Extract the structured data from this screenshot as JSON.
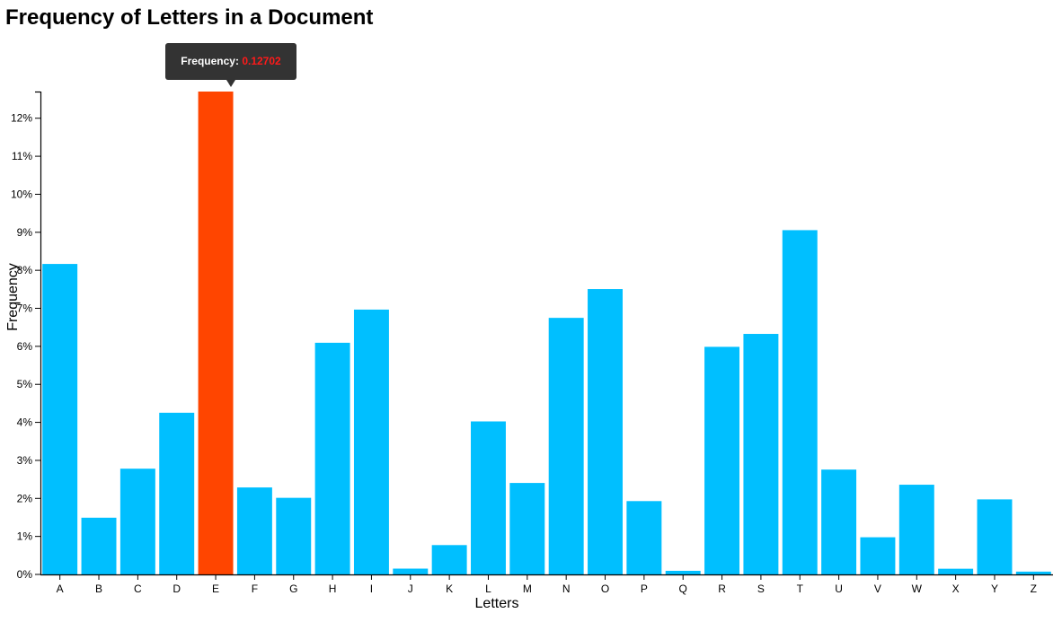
{
  "chart_data": {
    "type": "bar",
    "title": "Frequency of Letters in a Document",
    "xlabel": "Letters",
    "ylabel": "Frequency",
    "ylim": [
      0,
      0.12702
    ],
    "yticks": [
      0,
      0.01,
      0.02,
      0.03,
      0.04,
      0.05,
      0.06,
      0.07,
      0.08,
      0.09,
      0.1,
      0.11,
      0.12
    ],
    "ytick_labels": [
      "0%",
      "1%",
      "2%",
      "3%",
      "4%",
      "5%",
      "6%",
      "7%",
      "8%",
      "9%",
      "10%",
      "11%",
      "12%"
    ],
    "categories": [
      "A",
      "B",
      "C",
      "D",
      "E",
      "F",
      "G",
      "H",
      "I",
      "J",
      "K",
      "L",
      "M",
      "N",
      "O",
      "P",
      "Q",
      "R",
      "S",
      "T",
      "U",
      "V",
      "W",
      "X",
      "Y",
      "Z"
    ],
    "values": [
      0.08167,
      0.01492,
      0.02782,
      0.04253,
      0.12702,
      0.02288,
      0.02015,
      0.06094,
      0.06966,
      0.00153,
      0.00772,
      0.04025,
      0.02406,
      0.06749,
      0.07507,
      0.01929,
      0.00095,
      0.05987,
      0.06327,
      0.09056,
      0.02758,
      0.00978,
      0.0236,
      0.0015,
      0.01974,
      0.00074
    ],
    "grid": false,
    "highlighted_category": "E",
    "colors": {
      "bar": "#00bfff",
      "highlight": "#ff4500"
    }
  },
  "tooltip": {
    "label": "Frequency:",
    "value": "0.12702"
  }
}
